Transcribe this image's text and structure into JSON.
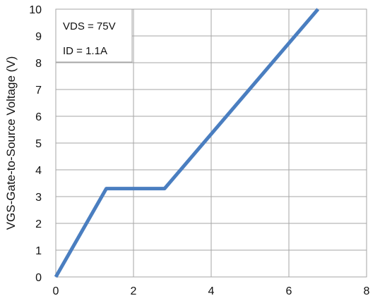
{
  "chart_data": {
    "type": "line",
    "title": "",
    "xlabel": "",
    "ylabel": "VGS-Gate-to-Source Voltage (V)",
    "xlim": [
      0,
      8
    ],
    "ylim": [
      0,
      10
    ],
    "x_ticks": [
      "0",
      "2",
      "4",
      "6",
      "8"
    ],
    "y_ticks": [
      "0",
      "1",
      "2",
      "3",
      "4",
      "5",
      "6",
      "7",
      "8",
      "9",
      "10"
    ],
    "grid": true,
    "annotations": [
      "VDS = 75V",
      "ID = 1.1A"
    ],
    "series": [
      {
        "x": [
          0,
          1.3,
          2.8,
          6.75
        ],
        "y": [
          0,
          3.3,
          3.3,
          10
        ]
      }
    ],
    "line_color": "#4a7ec0",
    "grid_color": "#a6a6a6"
  }
}
